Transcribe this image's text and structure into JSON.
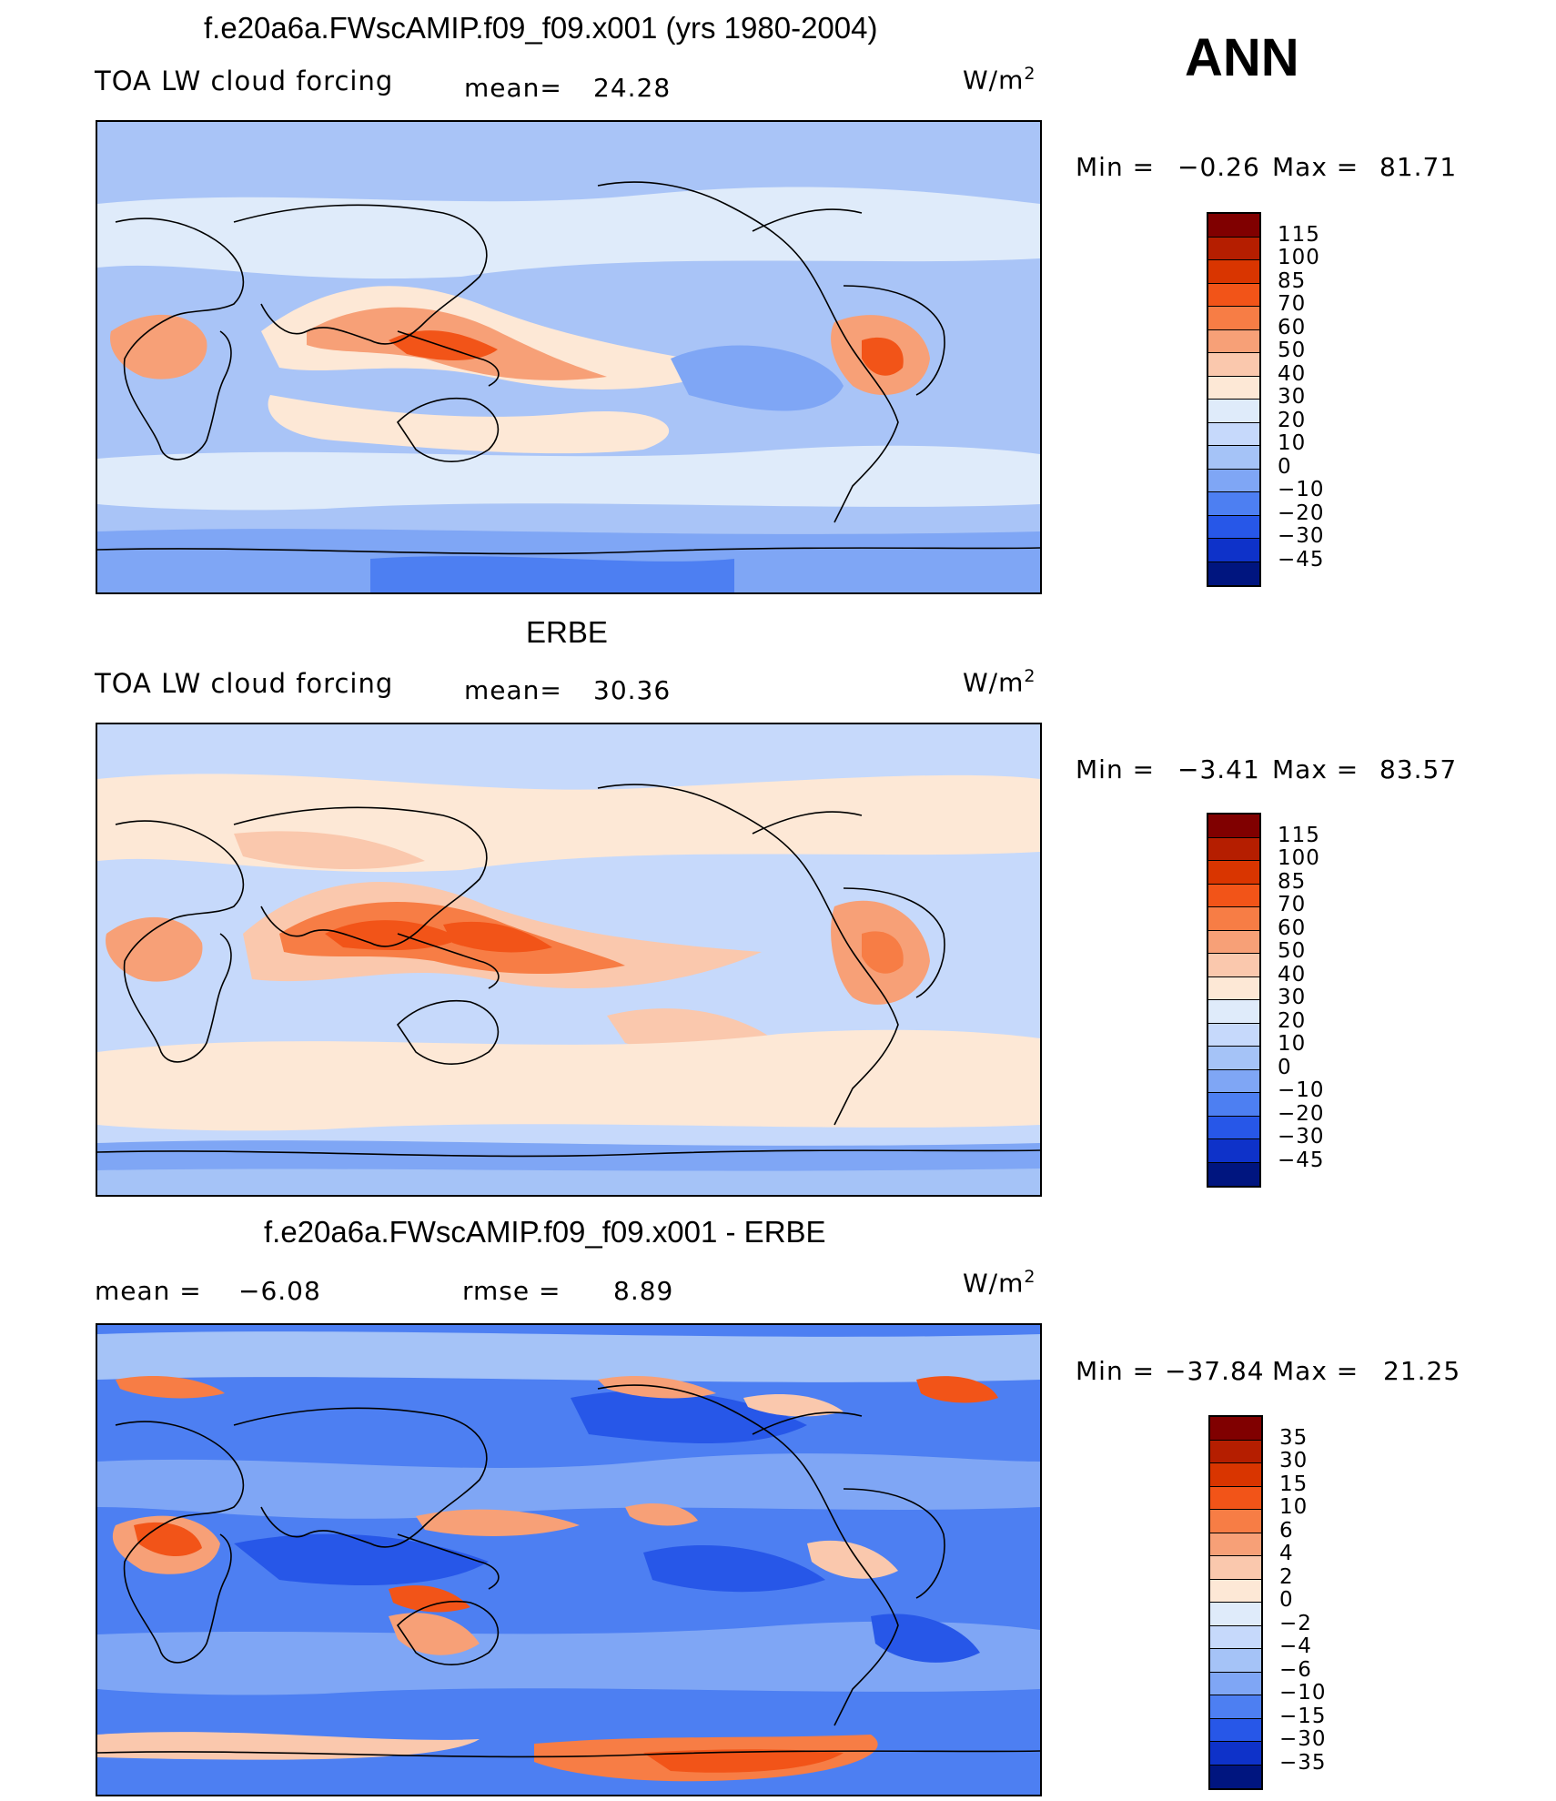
{
  "annotation": "ANN",
  "units_text": "W/m",
  "units_exponent": "2",
  "colors": {
    "ocean_base": "#a9c4f7",
    "coast": "#000000"
  },
  "panels": [
    {
      "title": "f.e20a6a.FWscAMIP.f09_f09.x001 (yrs 1980-2004)",
      "field": "TOA LW cloud forcing",
      "stat1_label": "mean=",
      "stat1_value": "24.28",
      "min_label": "Min  =",
      "min_value": "−0.26",
      "max_label": "Max  =",
      "max_value": "81.71",
      "colorbar": {
        "labels": [
          "115",
          "100",
          "85",
          "70",
          "60",
          "50",
          "40",
          "30",
          "20",
          "10",
          "0",
          "−10",
          "−20",
          "−30",
          "−45"
        ],
        "colors": [
          "#800000",
          "#b51e00",
          "#d93500",
          "#f25418",
          "#f77d45",
          "#f7a077",
          "#fac8ad",
          "#fde8d6",
          "#dfebfa",
          "#c6d9fb",
          "#a5c3f7",
          "#7fa6f5",
          "#4d7ff2",
          "#2757e8",
          "#0e32c9",
          "#00157f"
        ]
      }
    },
    {
      "title": "ERBE",
      "field": "TOA LW cloud forcing",
      "stat1_label": "mean=",
      "stat1_value": "30.36",
      "min_label": "Min  =",
      "min_value": "−3.41",
      "max_label": "Max  =",
      "max_value": "83.57",
      "colorbar": {
        "labels": [
          "115",
          "100",
          "85",
          "70",
          "60",
          "50",
          "40",
          "30",
          "20",
          "10",
          "0",
          "−10",
          "−20",
          "−30",
          "−45"
        ],
        "colors": [
          "#800000",
          "#b51e00",
          "#d93500",
          "#f25418",
          "#f77d45",
          "#f7a077",
          "#fac8ad",
          "#fde8d6",
          "#dfebfa",
          "#c6d9fb",
          "#a5c3f7",
          "#7fa6f5",
          "#4d7ff2",
          "#2757e8",
          "#0e32c9",
          "#00157f"
        ]
      }
    },
    {
      "title": "f.e20a6a.FWscAMIP.f09_f09.x001 - ERBE",
      "stat1_label": "mean  =",
      "stat1_value": "−6.08",
      "stat2_label": "rmse  =",
      "stat2_value": "8.89",
      "min_label": "Min  =",
      "min_value": "−37.84",
      "max_label": "Max  =",
      "max_value": "21.25",
      "colorbar": {
        "labels": [
          "35",
          "30",
          "15",
          "10",
          "6",
          "4",
          "2",
          "0",
          "−2",
          "−4",
          "−6",
          "−10",
          "−15",
          "−30",
          "−35"
        ],
        "colors": [
          "#800000",
          "#b51e00",
          "#d93500",
          "#f25418",
          "#f77d45",
          "#f7a077",
          "#fac8ad",
          "#fde8d6",
          "#dfebfa",
          "#c6d9fb",
          "#a5c3f7",
          "#7fa6f5",
          "#4d7ff2",
          "#2757e8",
          "#0e32c9",
          "#00157f"
        ]
      }
    }
  ]
}
